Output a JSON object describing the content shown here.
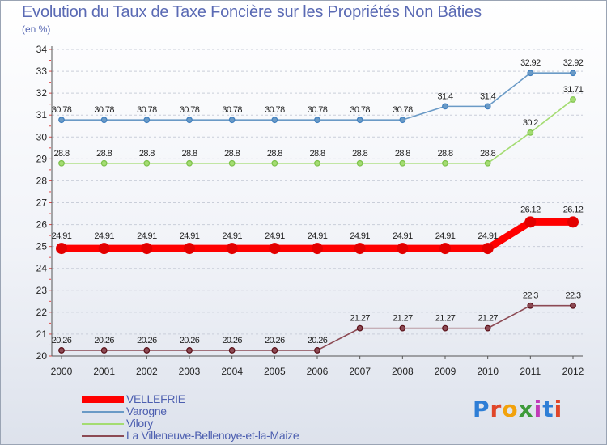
{
  "title": "Evolution du Taux de Taxe Foncière sur les Propriétés Non Bâties",
  "unit_label": "(en %)",
  "logo": "Proxiti",
  "chart_data": {
    "type": "line",
    "title": "Evolution du Taux de Taxe Foncière sur les Propriétés Non Bâties",
    "ylabel": "(en %)",
    "xlabel": "",
    "ylim": [
      20,
      34
    ],
    "y_ticks": [
      20,
      21,
      22,
      23,
      24,
      25,
      26,
      27,
      28,
      29,
      30,
      31,
      32,
      33,
      34
    ],
    "x": [
      "2000",
      "2001",
      "2002",
      "2003",
      "2004",
      "2005",
      "2006",
      "2007",
      "2008",
      "2009",
      "2010",
      "2011",
      "2012"
    ],
    "grid": "horizontal dashed",
    "series": [
      {
        "name": "Varogne",
        "color": "#6a9ac6",
        "marker_color": "#3f7fbf",
        "values": [
          30.78,
          30.78,
          30.78,
          30.78,
          30.78,
          30.78,
          30.78,
          30.78,
          30.78,
          31.4,
          31.4,
          32.92,
          32.92
        ],
        "labels": [
          "30.78",
          "30.78",
          "30.78",
          "30.78",
          "30.78",
          "30.78",
          "30.78",
          "30.78",
          "30.78",
          "31.4",
          "31.4",
          "32.92",
          "32.92"
        ]
      },
      {
        "name": "Vilory",
        "color": "#a4dc72",
        "marker_color": "#7cc14a",
        "values": [
          28.8,
          28.8,
          28.8,
          28.8,
          28.8,
          28.8,
          28.8,
          28.8,
          28.8,
          28.8,
          28.8,
          30.2,
          31.71
        ],
        "labels": [
          "28.8",
          "28.8",
          "28.8",
          "28.8",
          "28.8",
          "28.8",
          "28.8",
          "28.8",
          "28.8",
          "28.8",
          "28.8",
          "30.2",
          "31.71"
        ]
      },
      {
        "name": "VELLEFRIE",
        "color": "#ff0000",
        "marker_color": "#e30000",
        "bold": true,
        "values": [
          24.91,
          24.91,
          24.91,
          24.91,
          24.91,
          24.91,
          24.91,
          24.91,
          24.91,
          24.91,
          24.91,
          26.12,
          26.12
        ],
        "labels": [
          "24.91",
          "24.91",
          "24.91",
          "24.91",
          "24.91",
          "24.91",
          "24.91",
          "24.91",
          "24.91",
          "24.91",
          "24.91",
          "26.12",
          "26.12"
        ]
      },
      {
        "name": "La Villeneuve-Bellenoye-et-la-Maize",
        "color": "#8c4a54",
        "marker_color": "#5a1018",
        "values": [
          20.26,
          20.26,
          20.26,
          20.26,
          20.26,
          20.26,
          20.26,
          21.27,
          21.27,
          21.27,
          21.27,
          22.3,
          22.3
        ],
        "labels": [
          "20.26",
          "20.26",
          "20.26",
          "20.26",
          "20.26",
          "20.26",
          "20.26",
          "21.27",
          "21.27",
          "21.27",
          "21.27",
          "22.3",
          "22.3"
        ]
      }
    ],
    "legend": {
      "position": "bottom-left",
      "order": [
        "VELLEFRIE",
        "Varogne",
        "Vilory",
        "La Villeneuve-Bellenoye-et-la-Maize"
      ]
    }
  }
}
